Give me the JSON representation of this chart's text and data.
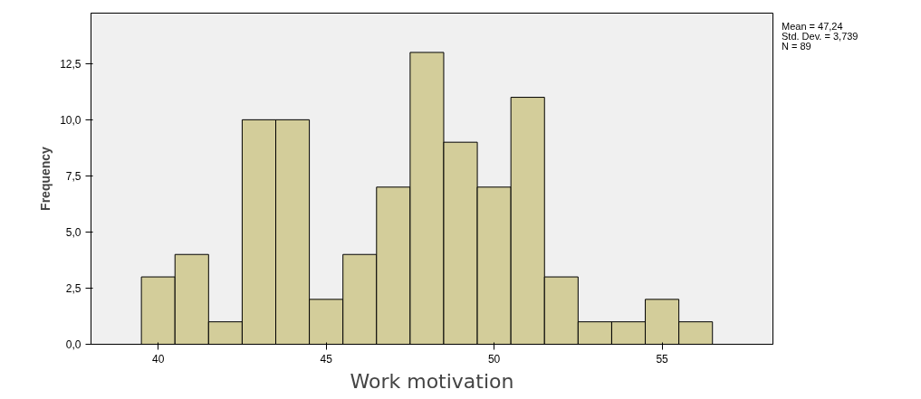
{
  "chart_data": {
    "type": "histogram",
    "xlabel": "Work motivation",
    "ylabel": "Frequency",
    "bins": [
      39.5,
      40.5,
      41.5,
      42.5,
      43.5,
      44.5,
      45.5,
      46.5,
      47.5,
      48.5,
      49.5,
      50.5,
      51.5,
      52.5,
      53.5,
      54.5,
      55.5,
      56.5
    ],
    "values": [
      3,
      4,
      1,
      10,
      10,
      2,
      4,
      7,
      13,
      9,
      7,
      11,
      3,
      1,
      1,
      2,
      1
    ],
    "color": "#d3cd9a",
    "xlim": [
      38,
      58.3
    ],
    "xticks": [
      40,
      45,
      50,
      55
    ],
    "ylim": [
      0,
      14.75
    ],
    "yticks": [
      {
        "value": 0,
        "label": "0,0"
      },
      {
        "value": 2.5,
        "label": "2,5"
      },
      {
        "value": 5,
        "label": "5,0"
      },
      {
        "value": 7.5,
        "label": "7,5"
      },
      {
        "value": 10,
        "label": "10,0"
      },
      {
        "value": 12.5,
        "label": "12,5"
      }
    ],
    "annotations": [
      "Mean = 47,24",
      "Std. Dev. = 3,739",
      "N = 89"
    ]
  }
}
